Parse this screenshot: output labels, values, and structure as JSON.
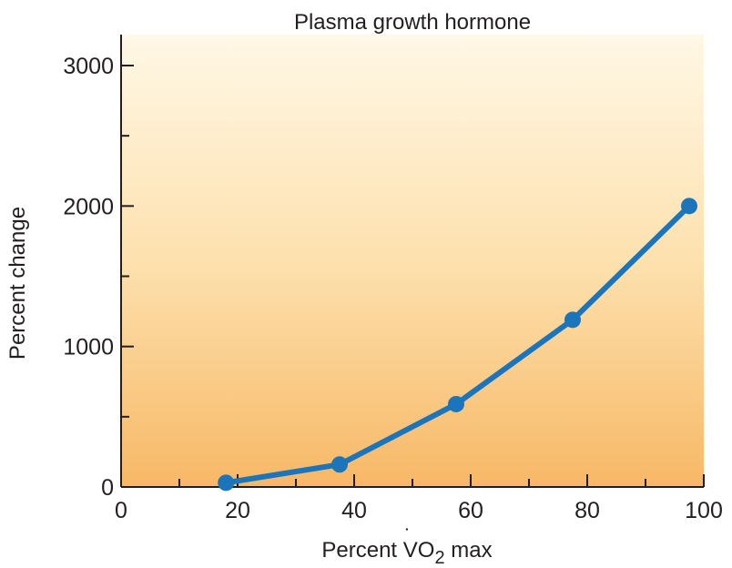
{
  "chart_data": {
    "type": "line",
    "title": "Plasma growth hormone",
    "xlabel_prefix": "Percent ",
    "xlabel_var": "V",
    "xlabel_var_dot": "˙",
    "xlabel_suffix1": "O",
    "xlabel_sub": "2",
    "xlabel_suffix2": " max",
    "ylabel": "Percent change",
    "xlim": [
      0,
      100
    ],
    "ylim": [
      0,
      3200
    ],
    "x_ticks": [
      0,
      20,
      40,
      60,
      80,
      100
    ],
    "x_minor_ticks": [
      10,
      30,
      50,
      70,
      90
    ],
    "y_ticks": [
      0,
      1000,
      2000,
      3000
    ],
    "y_minor_ticks": [
      500,
      1500,
      2500
    ],
    "x_tick_labels": [
      "0",
      "20",
      "40",
      "60",
      "80",
      "100"
    ],
    "y_tick_labels": [
      "0",
      "1000",
      "2000",
      "3000"
    ],
    "series": [
      {
        "name": "Plasma growth hormone",
        "x": [
          18,
          37.5,
          57.5,
          77.5,
          97.5
        ],
        "y": [
          30,
          160,
          590,
          1190,
          2000
        ]
      }
    ],
    "colors": {
      "line": "#1a75bc",
      "gradient_top": "#fff8e6",
      "gradient_bottom": "#f7b866",
      "axis": "#231f20"
    }
  }
}
